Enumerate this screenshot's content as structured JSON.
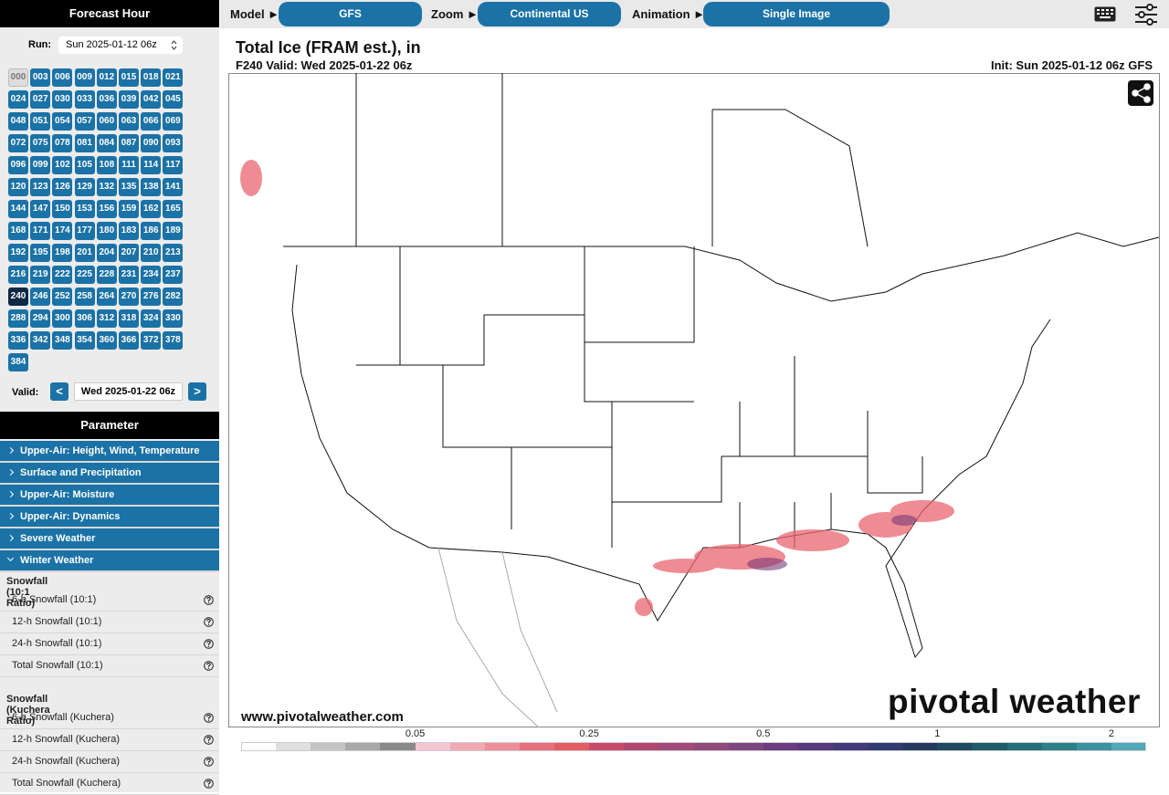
{
  "sidebar": {
    "forecast_hour_title": "Forecast Hour",
    "run_label": "Run:",
    "run_value": "Sun 2025-01-12 06z",
    "hours": [
      "000",
      "003",
      "006",
      "009",
      "012",
      "015",
      "018",
      "021",
      "024",
      "027",
      "030",
      "033",
      "036",
      "039",
      "042",
      "045",
      "048",
      "051",
      "054",
      "057",
      "060",
      "063",
      "066",
      "069",
      "072",
      "075",
      "078",
      "081",
      "084",
      "087",
      "090",
      "093",
      "096",
      "099",
      "102",
      "105",
      "108",
      "111",
      "114",
      "117",
      "120",
      "123",
      "126",
      "129",
      "132",
      "135",
      "138",
      "141",
      "144",
      "147",
      "150",
      "153",
      "156",
      "159",
      "162",
      "165",
      "168",
      "171",
      "174",
      "177",
      "180",
      "183",
      "186",
      "189",
      "192",
      "195",
      "198",
      "201",
      "204",
      "207",
      "210",
      "213",
      "216",
      "219",
      "222",
      "225",
      "228",
      "231",
      "234",
      "237",
      "240",
      "246",
      "252",
      "258",
      "264",
      "270",
      "276",
      "282",
      "288",
      "294",
      "300",
      "306",
      "312",
      "318",
      "324",
      "330",
      "336",
      "342",
      "348",
      "354",
      "360",
      "366",
      "372",
      "378",
      "384"
    ],
    "valid_label": "Valid:",
    "prev": "<",
    "valid_value": "Wed 2025-01-22 06z",
    "next": ">",
    "parameter_title": "Parameter",
    "categories": [
      "Upper-Air: Height, Wind, Temperature",
      "Surface and Precipitation",
      "Upper-Air: Moisture",
      "Upper-Air: Dynamics",
      "Severe Weather",
      "Winter Weather"
    ],
    "groups": [
      {
        "title": "Snowfall (10:1 Ratio)",
        "items": [
          "6-h Snowfall (10:1)",
          "12-h Snowfall (10:1)",
          "24-h Snowfall (10:1)",
          "Total Snowfall (10:1)"
        ]
      },
      {
        "title": "Snowfall (Kuchera Ratio)",
        "items": [
          "6-h Snowfall (Kuchera)",
          "12-h Snowfall (Kuchera)",
          "24-h Snowfall (Kuchera)",
          "Total Snowfall (Kuchera)"
        ]
      }
    ]
  },
  "topbar": {
    "model_label": "Model ►",
    "model": "GFS",
    "zoom_label": "Zoom ►",
    "zoom": "Continental US",
    "animation_label": "Animation ►",
    "animation": "Single Image"
  },
  "map": {
    "title": "Total Ice (FRAM est.), in",
    "valid": "F240 Valid: Wed 2025-01-22 06z",
    "init": "Init: Sun 2025-01-12 06z GFS",
    "website": "www.pivotalweather.com",
    "brand": "pivotal weather",
    "colorbar": {
      "labels": [
        "0.05",
        "0.25",
        "0.5",
        "1",
        "2"
      ],
      "colors": [
        "#ffffff",
        "#e0e0e0",
        "#c4c4c4",
        "#a8a8a8",
        "#8a8a8a",
        "#f4c7d0",
        "#f0a9b4",
        "#ec8f99",
        "#e8707c",
        "#e55b63",
        "#c94a6a",
        "#b04570",
        "#a04a78",
        "#8f4a7c",
        "#7e4680",
        "#6a3d80",
        "#563a7e",
        "#433a7a",
        "#323a70",
        "#25385f",
        "#1f4a5f",
        "#1f5c6a",
        "#247078",
        "#2b8088",
        "#3a92a0",
        "#52a8b8"
      ]
    }
  }
}
